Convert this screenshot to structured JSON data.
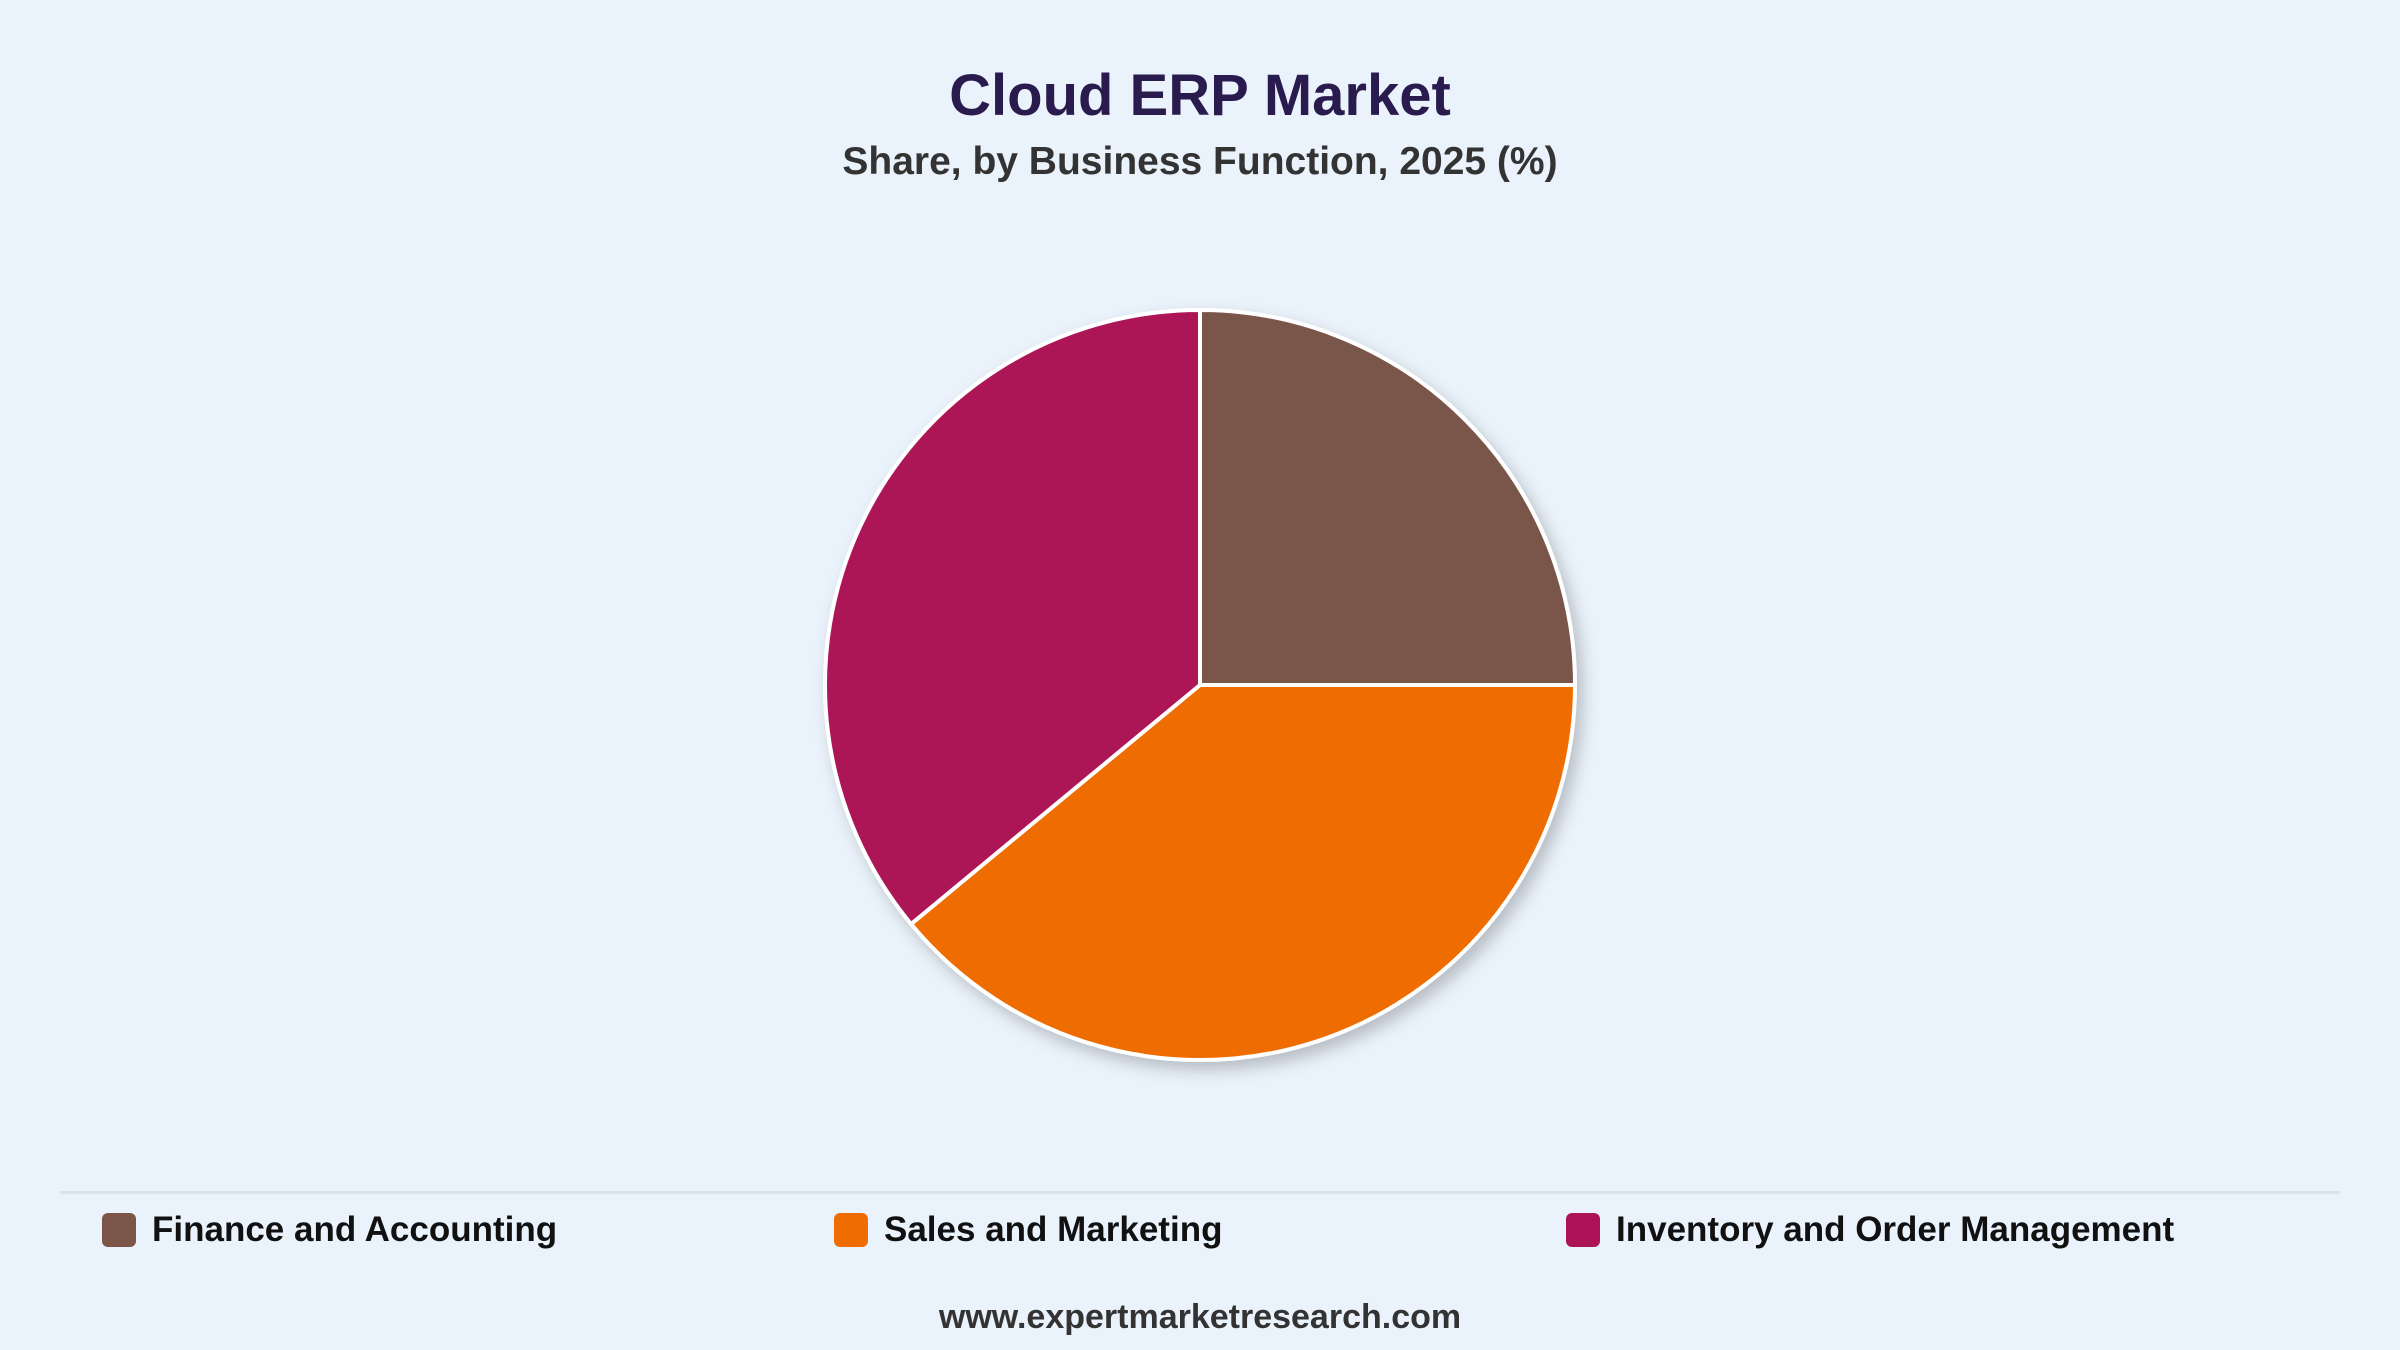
{
  "header": {
    "title": "Cloud ERP Market",
    "subtitle": "Share, by Business Function, 2025 (%)"
  },
  "footer": {
    "source": "www.expertmarketresearch.com"
  },
  "chart_data": {
    "type": "pie",
    "title": "Cloud ERP Market",
    "subtitle": "Share, by Business Function, 2025 (%)",
    "categories": [
      "Finance and Accounting",
      "Sales and Marketing",
      "Inventory and Order Management"
    ],
    "values": [
      25,
      39,
      36
    ],
    "colors": [
      "#7a5548",
      "#ef6c00",
      "#ad1457"
    ],
    "start_angle": "12 o'clock",
    "direction": "clockwise",
    "legend_position": "bottom"
  }
}
